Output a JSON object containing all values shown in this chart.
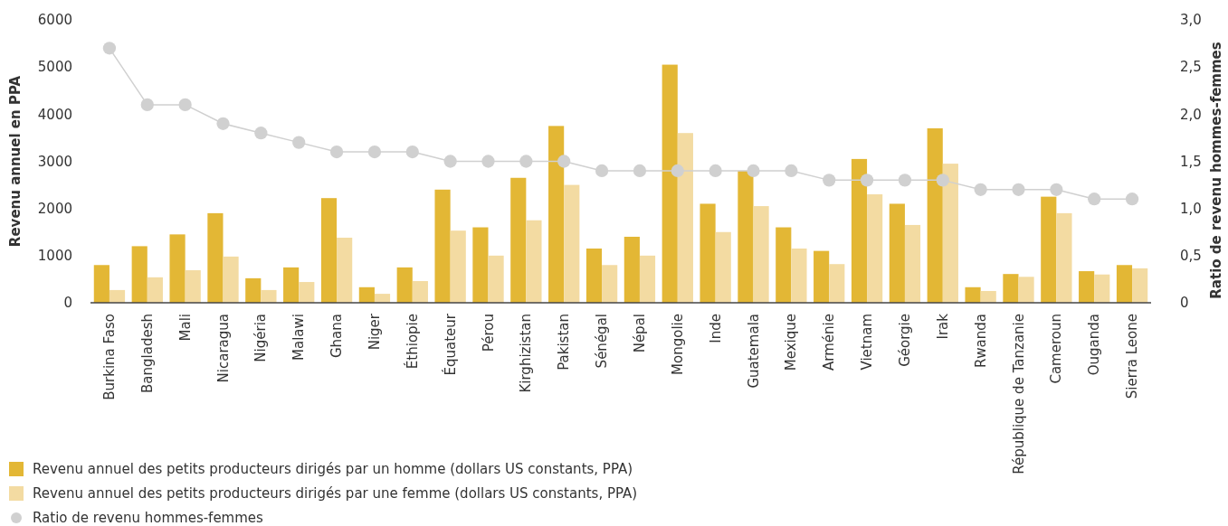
{
  "chart_data": {
    "type": "bar",
    "ylabel": "Revenu annuel en PPA",
    "y2label": "Ratio de revenu hommes-femmes",
    "categories": [
      "Burkina Faso",
      "Bangladesh",
      "Mali",
      "Nicaragua",
      "Nigéria",
      "Malawi",
      "Ghana",
      "Niger",
      "Éthiopie",
      "Équateur",
      "Pérou",
      "Kirghizistan",
      "Pakistan",
      "Sénégal",
      "Népal",
      "Mongolie",
      "Inde",
      "Guatemala",
      "Mexique",
      "Arménie",
      "Vietnam",
      "Géorgie",
      "Irak",
      "Rwanda",
      "République de Tanzanie",
      "Cameroun",
      "Ouganda",
      "Sierra Leone"
    ],
    "series": [
      {
        "name": "Revenu annuel des petits producteurs dirigés par un homme (dollars US constants, PPA)",
        "color": "#e3b735",
        "values": [
          800,
          1200,
          1450,
          1900,
          520,
          750,
          2220,
          330,
          750,
          2400,
          1600,
          2650,
          3750,
          1150,
          1400,
          5050,
          2100,
          2800,
          1600,
          1100,
          3050,
          2100,
          3700,
          330,
          610,
          2250,
          670,
          800
        ]
      },
      {
        "name": "Revenu annuel des petits producteurs dirigés par une femme (dollars US constants, PPA)",
        "color": "#f3dba2",
        "values": [
          270,
          540,
          690,
          980,
          270,
          440,
          1380,
          190,
          460,
          1530,
          1000,
          1750,
          2500,
          800,
          1000,
          3600,
          1500,
          2050,
          1150,
          820,
          2300,
          1650,
          2950,
          250,
          550,
          1900,
          600,
          730
        ]
      },
      {
        "name": "Ratio de revenu hommes-femmes",
        "type": "line",
        "axis": "y2",
        "marker": "circle",
        "color": "#d0d0d0",
        "values": [
          2.7,
          2.1,
          2.1,
          1.9,
          1.8,
          1.7,
          1.6,
          1.6,
          1.6,
          1.5,
          1.5,
          1.5,
          1.5,
          1.4,
          1.4,
          1.4,
          1.4,
          1.4,
          1.4,
          1.3,
          1.3,
          1.3,
          1.3,
          1.2,
          1.2,
          1.2,
          1.1,
          1.1
        ]
      }
    ],
    "ylim": [
      0,
      6000
    ],
    "yticks": [
      0,
      1000,
      2000,
      3000,
      4000,
      5000,
      6000
    ],
    "y2lim": [
      0,
      3
    ],
    "y2ticks": [
      0,
      {
        "value": 0.5,
        "label": "0,5"
      },
      {
        "value": 1,
        "label": "1,0"
      },
      {
        "value": 1.5,
        "label": "1,5"
      },
      {
        "value": 2,
        "label": "2,0"
      },
      {
        "value": 2.5,
        "label": "2,5"
      },
      {
        "value": 3,
        "label": "3,0"
      }
    ],
    "grid": false,
    "legend": "bottom"
  }
}
